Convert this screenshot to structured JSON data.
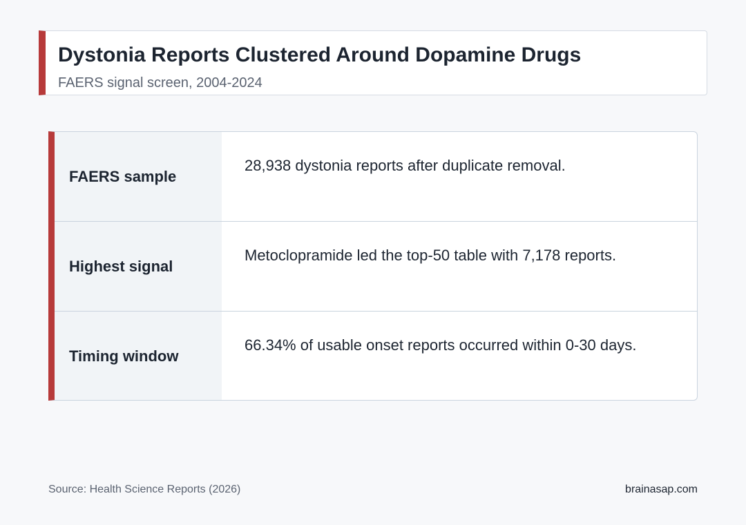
{
  "header": {
    "title": "Dystonia Reports Clustered Around Dopamine Drugs",
    "subtitle": "FAERS signal screen, 2004-2024"
  },
  "table": {
    "rows": [
      [
        "FAERS sample",
        "28,938 dystonia reports after duplicate removal."
      ],
      [
        "Highest signal",
        "Metoclopramide led the top-50 table with 7,178 reports."
      ],
      [
        "Timing window",
        "66.34% of usable onset reports occurred within 0-30 days."
      ]
    ]
  },
  "footer": {
    "source": "Source: Health Science Reports (2026)",
    "site": "brainasap.com"
  }
}
